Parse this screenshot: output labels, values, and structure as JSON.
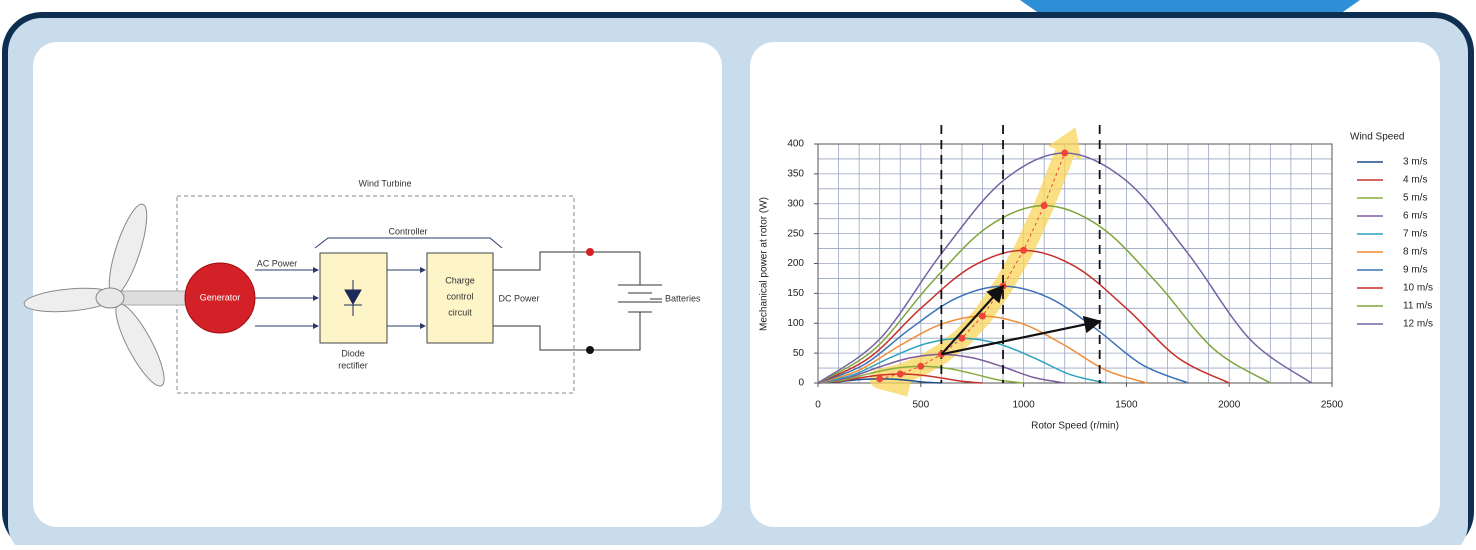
{
  "diagram": {
    "box_label": "Wind Turbine",
    "controller_label": "Controller",
    "ac_label": "AC Power",
    "generator": "Generator",
    "diode_rectifier": [
      "Diode",
      "rectifier"
    ],
    "charge_control": [
      "Charge",
      "control",
      "circuit"
    ],
    "dc_label": "DC Power",
    "batteries": "Batteries"
  },
  "chart_data": {
    "type": "line",
    "xlabel": "Rotor Speed (r/min)",
    "ylabel": "Mechanical power at rotor (W)",
    "legend_title": "Wind Speed",
    "legend": "right",
    "xlim": [
      0,
      2500
    ],
    "ylim": [
      0,
      400
    ],
    "xticks": [
      0,
      500,
      1000,
      1500,
      2000,
      2500
    ],
    "yticks": [
      0,
      50,
      100,
      150,
      200,
      250,
      300,
      350,
      400
    ],
    "grid": true,
    "grid_minor": {
      "x": 100,
      "y": 25
    },
    "series": [
      {
        "name": "3 m/s",
        "color": "#1f4e8c",
        "x": [
          0,
          75,
          150,
          225,
          300,
          375,
          450,
          525,
          600
        ],
        "values": [
          0,
          1.3,
          3.9,
          6.2,
          7,
          6.2,
          3.9,
          1.3,
          0
        ]
      },
      {
        "name": "4 m/s",
        "color": "#c9302c",
        "x": [
          0,
          100,
          200,
          300,
          400,
          500,
          600,
          700,
          800
        ],
        "values": [
          0,
          2.9,
          8.4,
          13.2,
          15,
          13.2,
          8.4,
          2.9,
          0
        ]
      },
      {
        "name": "5 m/s",
        "color": "#8aad3e",
        "x": [
          0,
          125,
          250,
          375,
          500,
          625,
          750,
          875,
          1000
        ],
        "values": [
          0,
          5.3,
          15.8,
          24.6,
          28,
          24.6,
          15.8,
          5.3,
          0
        ]
      },
      {
        "name": "6 m/s",
        "color": "#7b5c9e",
        "x": [
          0,
          150,
          300,
          450,
          600,
          750,
          900,
          1050,
          1200
        ],
        "values": [
          0,
          9.2,
          27,
          42.2,
          48,
          42.2,
          27,
          9.2,
          0
        ]
      },
      {
        "name": "7 m/s",
        "color": "#2ea2bd",
        "x": [
          0,
          175,
          350,
          525,
          700,
          875,
          1050,
          1225,
          1400
        ],
        "values": [
          0,
          14.3,
          42.2,
          65.9,
          75,
          65.9,
          42.2,
          14.3,
          0
        ]
      },
      {
        "name": "8 m/s",
        "color": "#f08c35",
        "x": [
          0,
          200,
          400,
          600,
          800,
          1000,
          1200,
          1400,
          1600
        ],
        "values": [
          0,
          21.4,
          63,
          98.4,
          112,
          98.4,
          63,
          21.4,
          0
        ]
      },
      {
        "name": "9 m/s",
        "color": "#3a72b8",
        "x": [
          0,
          225,
          450,
          675,
          900,
          1125,
          1350,
          1575,
          1800
        ],
        "values": [
          0,
          30.9,
          91.1,
          142.4,
          162,
          142.4,
          91.1,
          30.9,
          0
        ]
      },
      {
        "name": "10 m/s",
        "color": "#c4302b",
        "x": [
          0,
          250,
          500,
          750,
          1000,
          1250,
          1500,
          1750,
          2000
        ],
        "values": [
          0,
          42.4,
          124.9,
          195.1,
          222,
          195.1,
          124.9,
          42.4,
          0
        ]
      },
      {
        "name": "11 m/s",
        "color": "#7fa53c",
        "x": [
          0,
          275,
          550,
          825,
          1100,
          1375,
          1650,
          1925,
          2200
        ],
        "values": [
          0,
          56.7,
          167.1,
          261.1,
          297,
          261.1,
          167.1,
          56.7,
          0
        ]
      },
      {
        "name": "12 m/s",
        "color": "#7463a3",
        "x": [
          0,
          300,
          600,
          900,
          1200,
          1500,
          1800,
          2100,
          2400
        ],
        "values": [
          0,
          73.5,
          216.6,
          338.4,
          385,
          338.4,
          216.6,
          73.5,
          0
        ]
      }
    ],
    "peak_points": {
      "color": "#f0443a",
      "x": [
        300,
        400,
        500,
        600,
        700,
        800,
        900,
        1000,
        1100,
        1200
      ],
      "values": [
        7,
        15,
        28,
        48,
        75,
        112,
        162,
        222,
        297,
        385
      ]
    },
    "vlines": [
      600,
      900,
      1370
    ],
    "arrows": [
      {
        "x": [
          600,
          900
        ],
        "values": [
          48,
          162
        ]
      },
      {
        "x": [
          600,
          1370
        ],
        "values": [
          48,
          103
        ]
      }
    ]
  }
}
